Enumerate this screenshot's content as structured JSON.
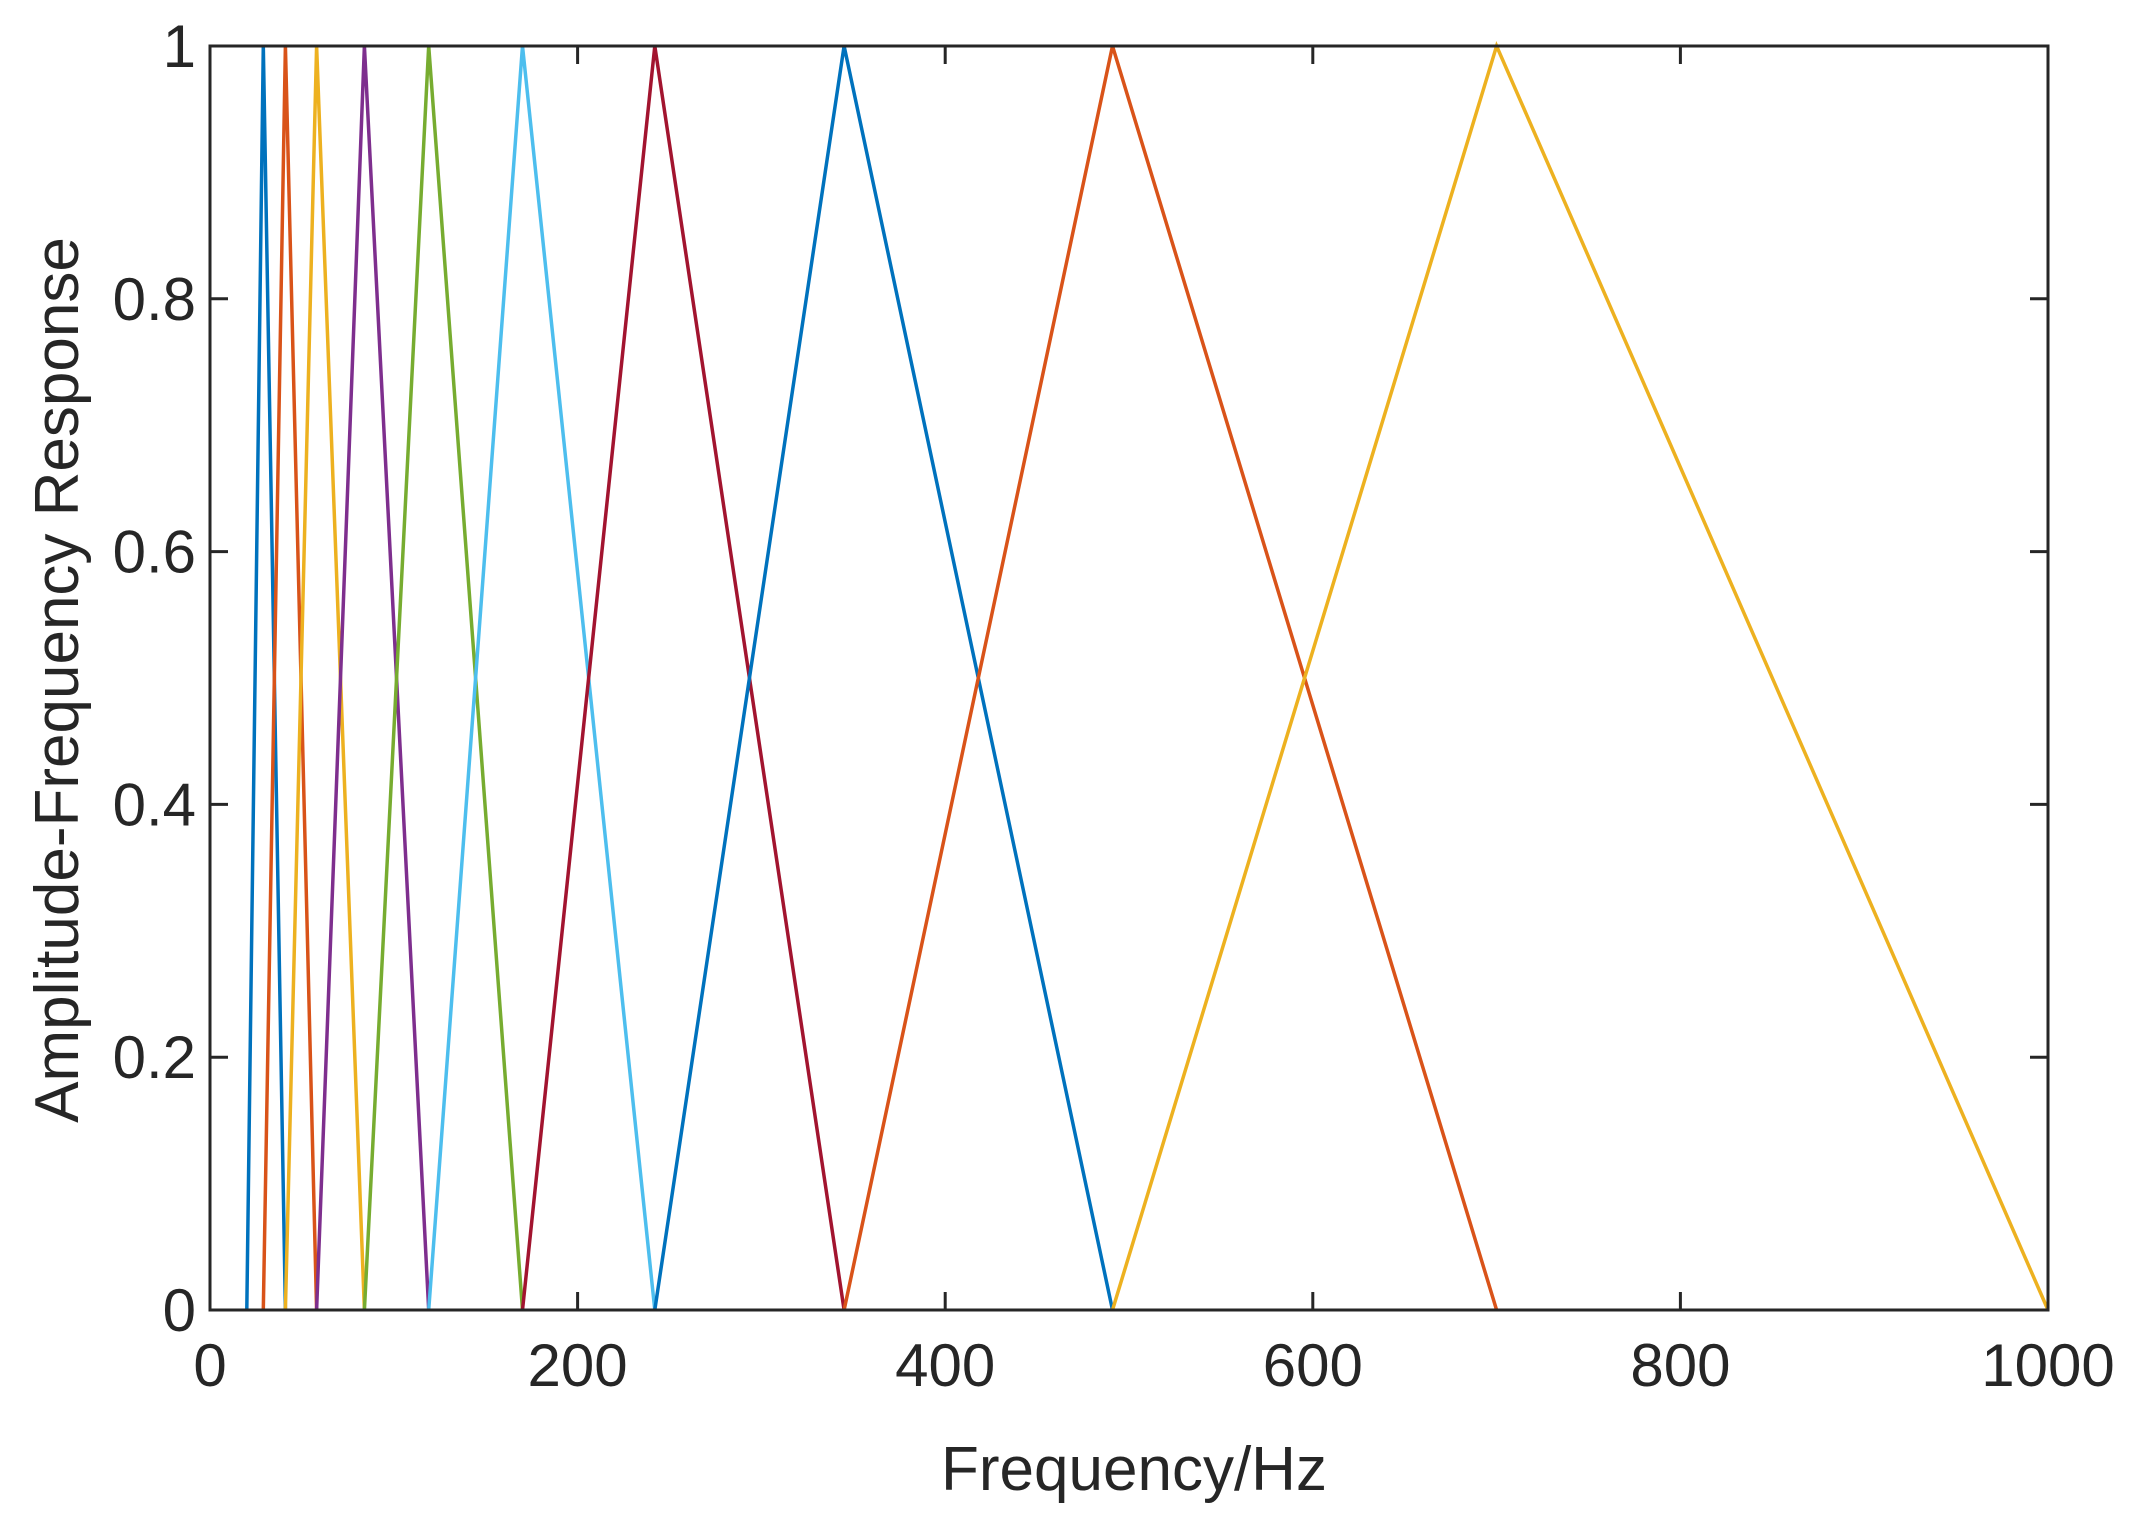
{
  "chart_data": {
    "type": "line",
    "title": "",
    "xlabel": "Frequency/Hz",
    "ylabel": "Amplitude-Frequency Response",
    "xlim": [
      0,
      1000
    ],
    "ylim": [
      0,
      1
    ],
    "xticks": [
      0,
      200,
      400,
      600,
      800,
      1000
    ],
    "xtick_labels": [
      "0",
      "200",
      "400",
      "600",
      "800",
      "1000"
    ],
    "yticks": [
      0,
      0.2,
      0.4,
      0.6,
      0.8,
      1
    ],
    "ytick_labels": [
      "0",
      "0.2",
      "0.4",
      "0.6",
      "0.8",
      "1"
    ],
    "grid": false,
    "legend": "none",
    "series": [
      {
        "color": "#0072BD",
        "x": [
          20,
          29,
          41
        ],
        "y": [
          0,
          1,
          0
        ]
      },
      {
        "color": "#D95319",
        "x": [
          29,
          41,
          58
        ],
        "y": [
          0,
          1,
          0
        ]
      },
      {
        "color": "#EDB120",
        "x": [
          41,
          58,
          84
        ],
        "y": [
          0,
          1,
          0
        ]
      },
      {
        "color": "#7E2F8E",
        "x": [
          58,
          84,
          119
        ],
        "y": [
          0,
          1,
          0
        ]
      },
      {
        "color": "#77AC30",
        "x": [
          84,
          119,
          170
        ],
        "y": [
          0,
          1,
          0
        ]
      },
      {
        "color": "#4DBEEE",
        "x": [
          119,
          170,
          242
        ],
        "y": [
          0,
          1,
          0
        ]
      },
      {
        "color": "#A2142F",
        "x": [
          170,
          242,
          345
        ],
        "y": [
          0,
          1,
          0
        ]
      },
      {
        "color": "#0072BD",
        "x": [
          242,
          345,
          491
        ],
        "y": [
          0,
          1,
          0
        ]
      },
      {
        "color": "#D95319",
        "x": [
          345,
          491,
          700
        ],
        "y": [
          0,
          1,
          0
        ]
      },
      {
        "color": "#EDB120",
        "x": [
          491,
          700,
          1000
        ],
        "y": [
          0,
          1,
          0
        ]
      }
    ]
  }
}
